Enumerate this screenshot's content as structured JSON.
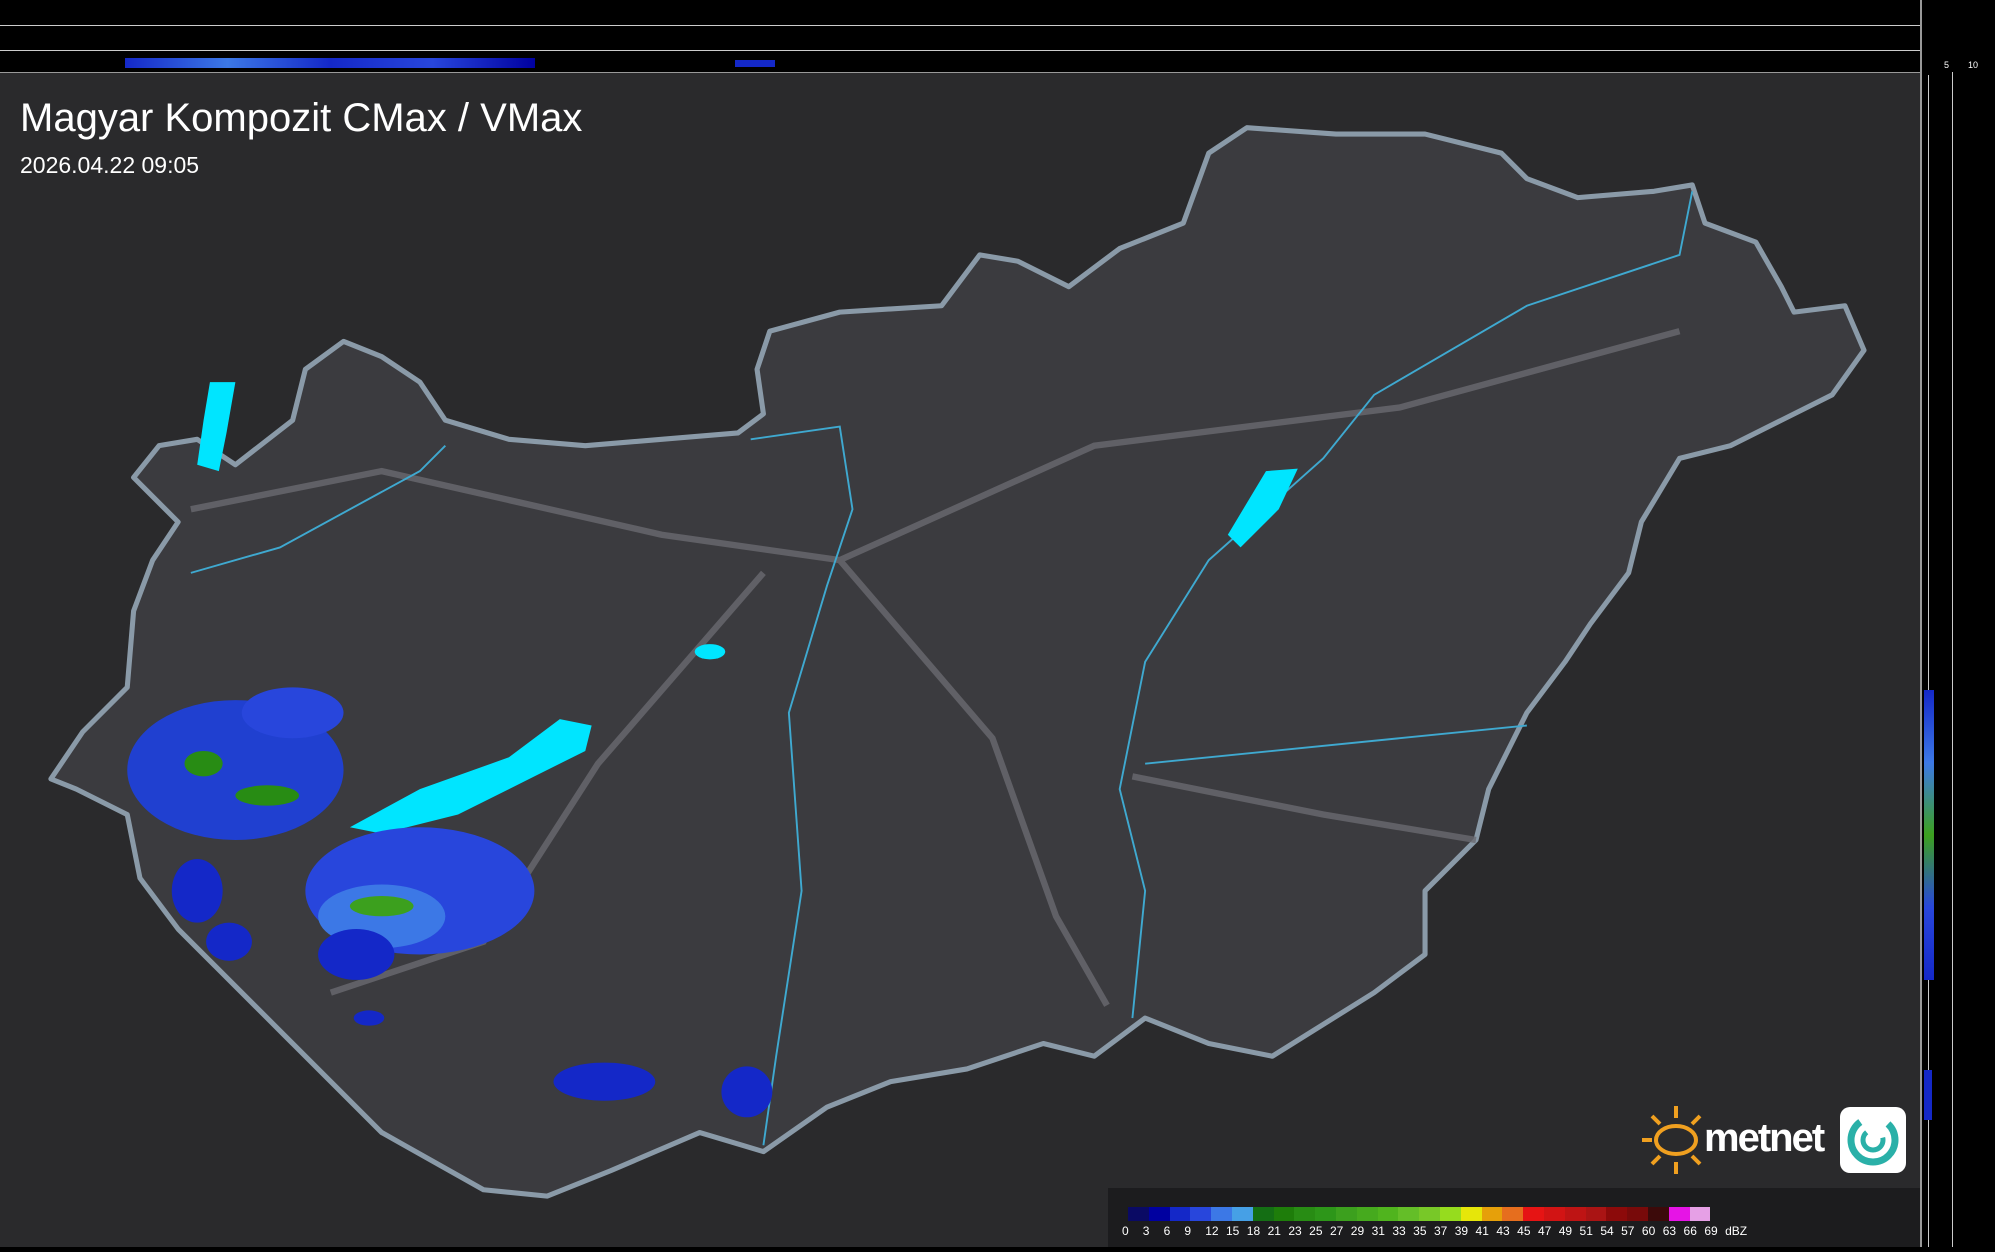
{
  "header": {
    "title": "Magyar Kompozit CMax / VMax",
    "timestamp": "2026.04.22 09:05"
  },
  "side_axes": {
    "top_ticks": [
      "10",
      "5"
    ],
    "right_ticks": [
      "5",
      "10"
    ]
  },
  "legend": {
    "unit": "dBZ",
    "labels": [
      "0",
      "3",
      "6",
      "9",
      "12",
      "15",
      "18",
      "21",
      "23",
      "25",
      "27",
      "29",
      "31",
      "33",
      "35",
      "37",
      "39",
      "41",
      "43",
      "45",
      "47",
      "49",
      "51",
      "54",
      "57",
      "60",
      "63",
      "66",
      "69"
    ],
    "colors": [
      "#0a0a64",
      "#0000a0",
      "#1428c8",
      "#2846dc",
      "#3c78e6",
      "#46a0e6",
      "#146e14",
      "#1e7d0a",
      "#288c14",
      "#2d9619",
      "#3ca01e",
      "#46aa1e",
      "#50b41e",
      "#64be28",
      "#78c828",
      "#96dc1e",
      "#e6e60a",
      "#e6a00a",
      "#e66e1e",
      "#e61414",
      "#d21414",
      "#be1414",
      "#aa1414",
      "#8c0a0a",
      "#780a0a",
      "#3c0a0a",
      "#e614e6",
      "#e6a0e6",
      "#96e6e6"
    ]
  },
  "logo": {
    "text": "metnet"
  },
  "colors": {
    "background": "#2a2a2c",
    "country": "#3a3a3e",
    "border": "#8a9aa8",
    "water": "#00e5ff",
    "rivers": "#3fa9d0"
  }
}
